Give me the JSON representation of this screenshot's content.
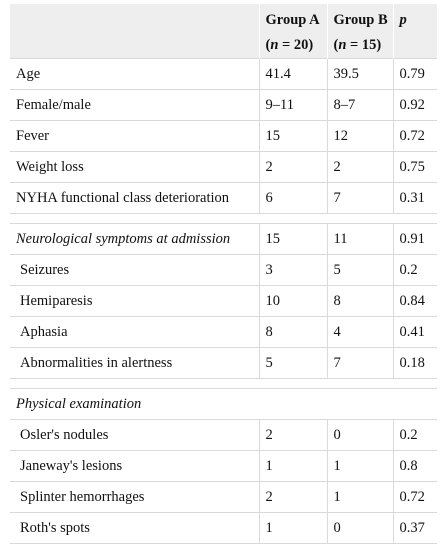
{
  "header": {
    "col_group_a_title": "Group A",
    "col_group_a_n": "(n = 20)",
    "col_group_b_title": "Group B",
    "col_group_b_n": "(n = 15)",
    "col_p": "p"
  },
  "rows": [
    {
      "label": "Age",
      "a": "41.4",
      "b": "39.5",
      "p": "0.79"
    },
    {
      "label": "Female/male",
      "a": "9–11",
      "b": "8–7",
      "p": "0.92"
    },
    {
      "label": "Fever",
      "a": "15",
      "b": "12",
      "p": "0.72"
    },
    {
      "label": "Weight loss",
      "a": "2",
      "b": "2",
      "p": "0.75"
    },
    {
      "label": "NYHA functional class deterioration",
      "a": "6",
      "b": "7",
      "p": "0.31"
    },
    {
      "label": "Neurological symptoms at admission",
      "a": "15",
      "b": "11",
      "p": "0.91"
    },
    {
      "label": "Seizures",
      "a": "3",
      "b": "5",
      "p": "0.2"
    },
    {
      "label": "Hemiparesis",
      "a": "10",
      "b": "8",
      "p": "0.84"
    },
    {
      "label": "Aphasia",
      "a": "8",
      "b": "4",
      "p": "0.41"
    },
    {
      "label": "Abnormalities in alertness",
      "a": "5",
      "b": "7",
      "p": "0.18"
    },
    {
      "label": "Physical examination"
    },
    {
      "label": "Osler's nodules",
      "a": "2",
      "b": "0",
      "p": "0.2"
    },
    {
      "label": "Janeway's lesions",
      "a": "1",
      "b": "1",
      "p": "0.8"
    },
    {
      "label": "Splinter hemorrhages",
      "a": "2",
      "b": "1",
      "p": "0.72"
    },
    {
      "label": "Roth's spots",
      "a": "1",
      "b": "0",
      "p": "0.37"
    }
  ]
}
